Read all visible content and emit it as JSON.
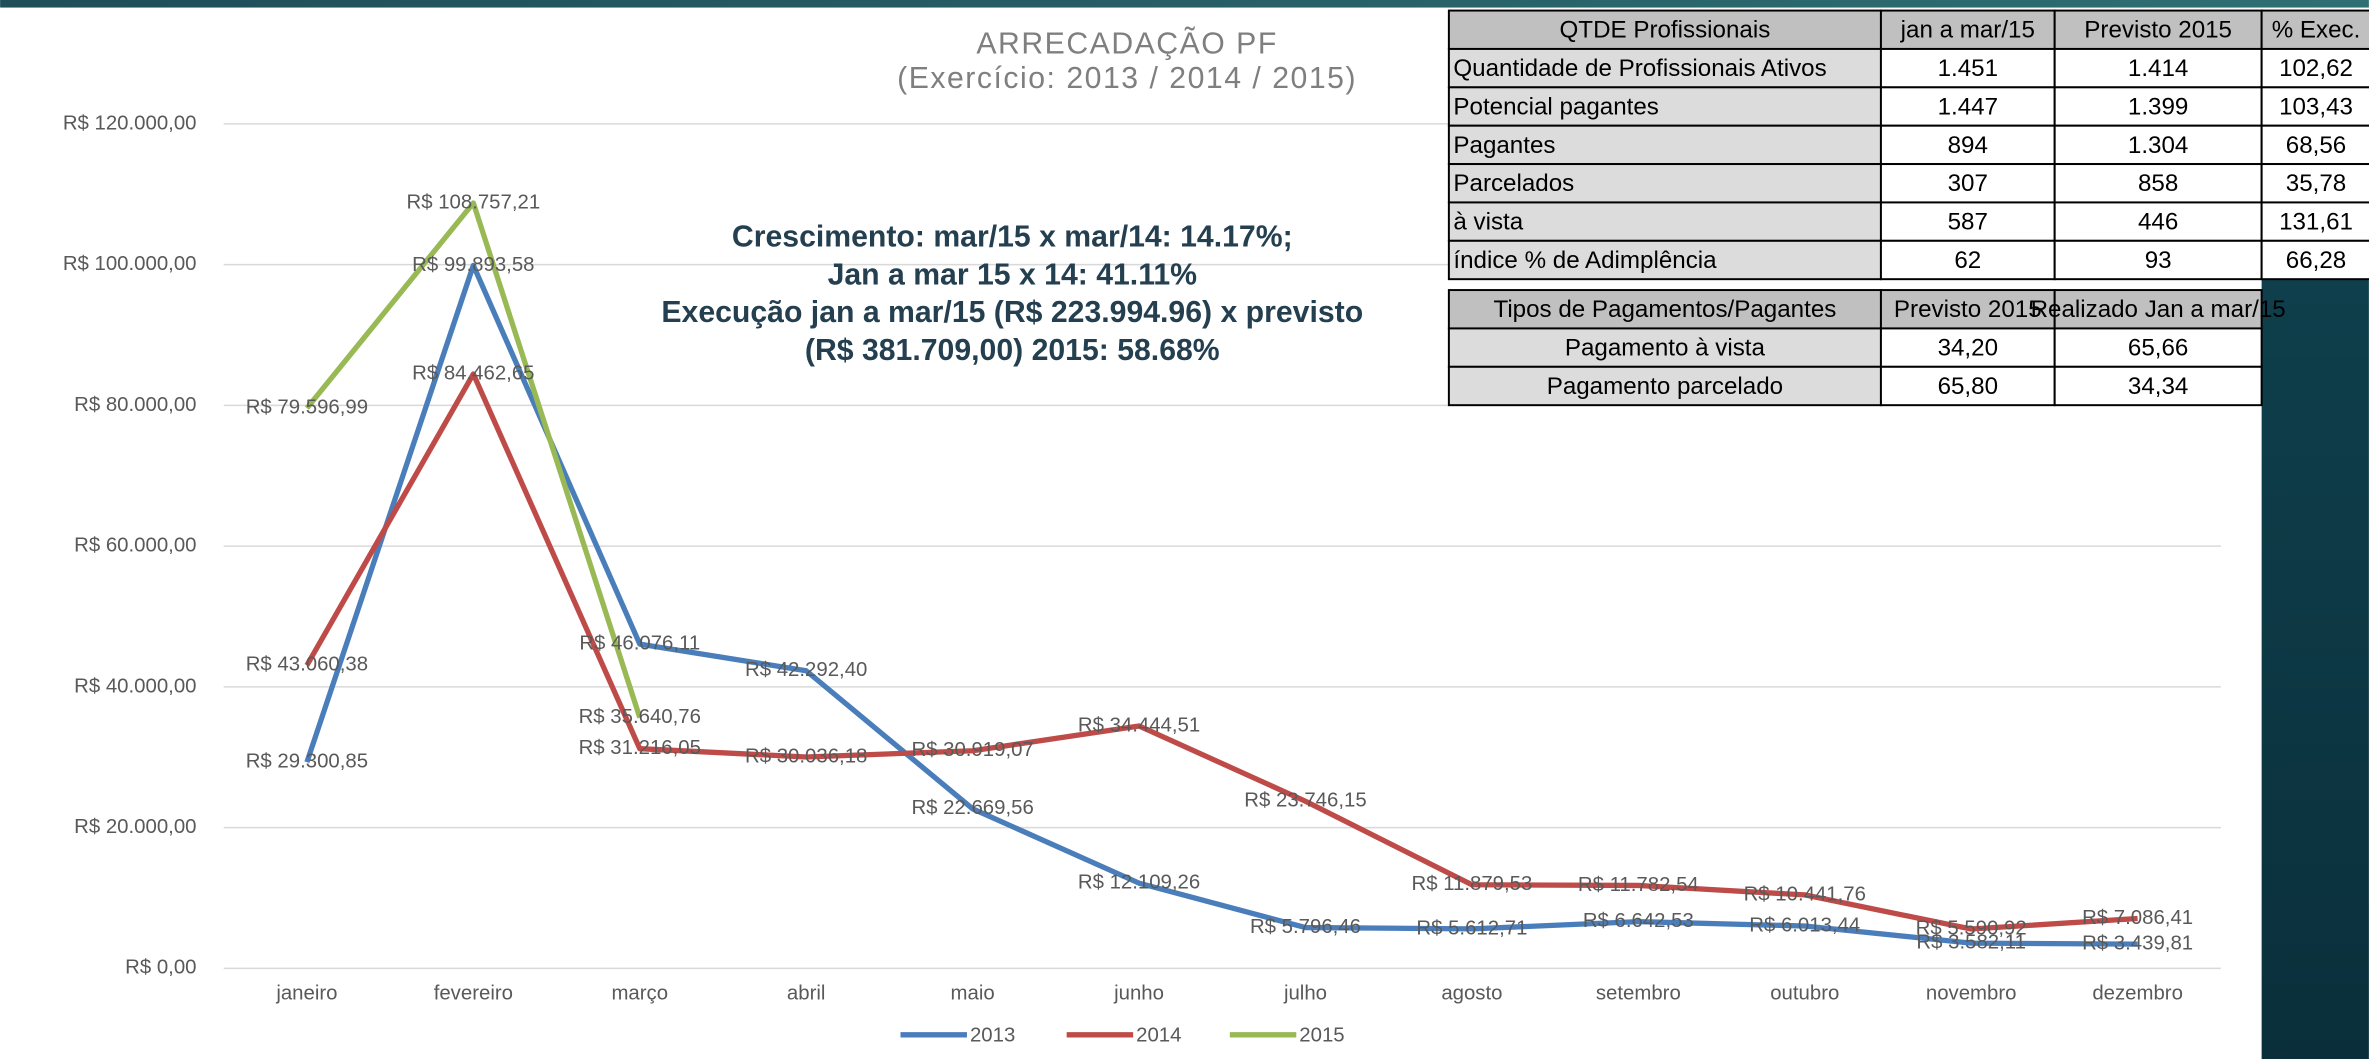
{
  "chart_data": {
    "type": "line",
    "title": [
      "ARRECADAÇÃO PF",
      "(Exercício: 2013 / 2014 / 2015)"
    ],
    "annotations": [
      "Crescimento: mar/15 x mar/14: 14.17%;",
      "Jan a mar 15 x 14: 41.11%",
      "Execução jan a mar/15 (R$ 223.994.96) x previsto",
      "(R$ 381.709,00) 2015: 58.68%"
    ],
    "categories": [
      "janeiro",
      "fevereiro",
      "março",
      "abril",
      "maio",
      "junho",
      "julho",
      "agosto",
      "setembro",
      "outubro",
      "novembro",
      "dezembro"
    ],
    "series": [
      {
        "name": "2013",
        "color": "#4a7ebb",
        "values": [
          29300.85,
          99893.58,
          46076.11,
          42292.4,
          22669.56,
          12109.26,
          5796.46,
          5612.71,
          6642.53,
          6013.44,
          3582.11,
          3439.81
        ],
        "value_labels": [
          "R$ 29.300,85",
          "R$ 99.893,58",
          "R$ 46.076,11",
          "R$ 42.292,40",
          "R$ 22.669,56",
          "R$ 12.109,26",
          "R$ 5.796,46",
          "R$ 5.612,71",
          "R$ 6.642,53",
          "R$ 6.013,44",
          "R$ 3.582,11",
          "R$ 3.439,81"
        ]
      },
      {
        "name": "2014",
        "color": "#be4b48",
        "values": [
          43060.38,
          84462.65,
          31216.05,
          30036.18,
          30919.07,
          34444.51,
          23746.15,
          11879.53,
          11782.54,
          10441.76,
          5590.92,
          7086.41
        ],
        "value_labels": [
          "R$ 43.060,38",
          "R$ 84.462,65",
          "R$ 31.216,05",
          "R$ 30.036,18",
          "R$ 30.919,07",
          "R$ 34.444,51",
          "R$ 23.746,15",
          "R$ 11.879,53",
          "R$ 11.782,54",
          "R$ 10.441,76",
          "R$ 5.590,92",
          "R$ 7.086,41"
        ]
      },
      {
        "name": "2015",
        "color": "#98b954",
        "values": [
          79596.99,
          108757.21,
          35640.76,
          null,
          null,
          null,
          null,
          null,
          null,
          null,
          null,
          null
        ],
        "value_labels": [
          "R$ 79.596,99",
          "R$ 108.757,21",
          "R$ 35.640,76",
          null,
          null,
          null,
          null,
          null,
          null,
          null,
          null,
          null
        ]
      }
    ],
    "ylim": [
      0,
      120000
    ],
    "yticks": [
      {
        "value": 0,
        "label": "R$ 0,00"
      },
      {
        "value": 20000,
        "label": "R$ 20.000,00"
      },
      {
        "value": 40000,
        "label": "R$ 40.000,00"
      },
      {
        "value": 60000,
        "label": "R$ 60.000,00"
      },
      {
        "value": 80000,
        "label": "R$ 80.000,00"
      },
      {
        "value": 100000,
        "label": "R$ 100.000,00"
      },
      {
        "value": 120000,
        "label": "R$ 120.000,00"
      }
    ],
    "grid": true,
    "legend": "bottom"
  },
  "tables": [
    {
      "header": [
        "QTDE Profissionais",
        "jan a mar/15",
        "Previsto 2015",
        "% Exec."
      ],
      "rows": [
        [
          "Quantidade de Profissionais Ativos",
          "1.451",
          "1.414",
          "102,62"
        ],
        [
          "Potencial pagantes",
          "1.447",
          "1.399",
          "103,43"
        ],
        [
          "Pagantes",
          "894",
          "1.304",
          "68,56"
        ],
        [
          "Parcelados",
          "307",
          "858",
          "35,78"
        ],
        [
          "à vista",
          "587",
          "446",
          "131,61"
        ],
        [
          "índice % de Adimplência",
          "62",
          "93",
          "66,28"
        ]
      ]
    },
    {
      "header": [
        "Tipos de Pagamentos/Pagantes",
        "Previsto 2015",
        "Realizado Jan a mar/15"
      ],
      "rows": [
        [
          "Pagamento à vista",
          "34,20",
          "65,66"
        ],
        [
          "Pagamento parcelado",
          "65,80",
          "34,34"
        ]
      ]
    }
  ]
}
